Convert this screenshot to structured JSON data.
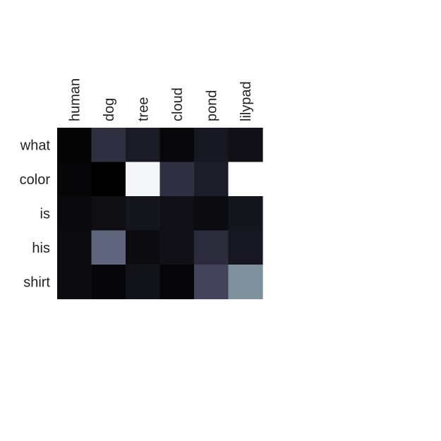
{
  "chart_data": {
    "type": "heatmap",
    "title": "",
    "xlabel": "",
    "ylabel": "",
    "grid": false,
    "legend": "none",
    "columns": [
      "human",
      "dog",
      "tree",
      "cloud",
      "pond",
      "lilypad"
    ],
    "rows": [
      "what",
      "color",
      "is",
      "his",
      "shirt"
    ],
    "values": [
      [
        0.02,
        0.24,
        0.14,
        0.04,
        0.12,
        0.08
      ],
      [
        0.03,
        0.0,
        1.0,
        0.24,
        0.15,
        1.1
      ],
      [
        0.05,
        0.07,
        0.11,
        0.08,
        0.06,
        0.11
      ],
      [
        0.06,
        0.49,
        0.06,
        0.08,
        0.22,
        0.12
      ],
      [
        0.06,
        0.03,
        0.09,
        0.03,
        0.35,
        0.62
      ]
    ],
    "colormap": {
      "name": "bone-like",
      "stops": [
        "#000000",
        "#2b2b3c",
        "#545472",
        "#8a9ea8",
        "#e4eeee",
        "#ffffff"
      ],
      "vmin": 0,
      "vmax": 1.1
    }
  }
}
